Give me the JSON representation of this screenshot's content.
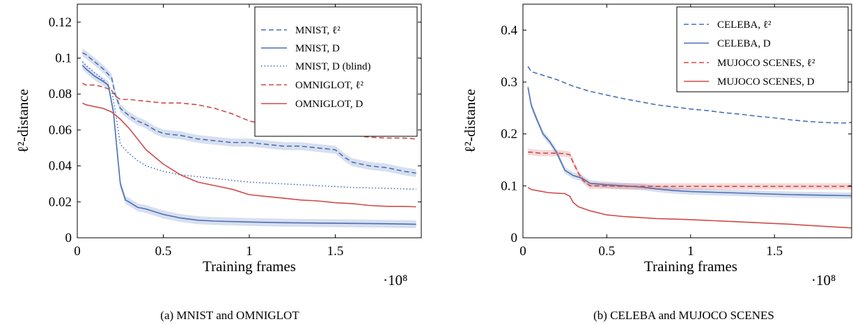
{
  "figure": {
    "subcaptions": [
      "(a) MNIST and OMNIGLOT",
      "(b) CELEBA and MUJOCO SCENES"
    ]
  },
  "chart_data": [
    {
      "type": "line",
      "title": "",
      "caption": "(a) MNIST and OMNIGLOT",
      "xlabel": "Training frames",
      "ylabel": "ℓ²-distance",
      "x_multiplier": "·10⁸",
      "xlim": [
        0,
        2.0
      ],
      "ylim": [
        0,
        0.13
      ],
      "xticks": [
        0,
        0.5,
        1,
        1.5
      ],
      "xtick_labels": [
        "0",
        "0.5",
        "1",
        "1.5"
      ],
      "yticks": [
        0,
        0.02,
        0.04,
        0.06,
        0.08,
        0.1,
        0.12
      ],
      "ytick_labels": [
        "0",
        "0.02",
        "0.04",
        "0.06",
        "0.08",
        "0.1",
        "0.12"
      ],
      "grid": false,
      "legend_position": "top-right",
      "series": [
        {
          "name": "MNIST, ℓ²",
          "color": "#4a6fb5",
          "dash": "dashed",
          "band": true,
          "x": [
            0.03,
            0.05,
            0.1,
            0.15,
            0.2,
            0.22,
            0.25,
            0.3,
            0.35,
            0.4,
            0.45,
            0.5,
            0.6,
            0.7,
            0.8,
            0.9,
            1.0,
            1.1,
            1.2,
            1.3,
            1.4,
            1.5,
            1.55,
            1.6,
            1.7,
            1.8,
            1.9,
            1.97
          ],
          "y": [
            0.103,
            0.102,
            0.098,
            0.094,
            0.089,
            0.08,
            0.072,
            0.068,
            0.065,
            0.063,
            0.06,
            0.058,
            0.057,
            0.055,
            0.054,
            0.053,
            0.053,
            0.052,
            0.051,
            0.051,
            0.05,
            0.049,
            0.045,
            0.042,
            0.04,
            0.039,
            0.037,
            0.036
          ]
        },
        {
          "name": "MNIST, D",
          "color": "#4a6fb5",
          "dash": "solid",
          "band": true,
          "x": [
            0.03,
            0.05,
            0.1,
            0.15,
            0.18,
            0.21,
            0.23,
            0.25,
            0.28,
            0.3,
            0.35,
            0.4,
            0.5,
            0.6,
            0.7,
            0.8,
            1.0,
            1.2,
            1.4,
            1.6,
            1.8,
            1.97
          ],
          "y": [
            0.096,
            0.094,
            0.09,
            0.087,
            0.085,
            0.07,
            0.05,
            0.03,
            0.021,
            0.02,
            0.017,
            0.016,
            0.013,
            0.011,
            0.0098,
            0.0093,
            0.0088,
            0.0084,
            0.0082,
            0.008,
            0.0078,
            0.0075
          ]
        },
        {
          "name": "MNIST, D (blind)",
          "color": "#4a6fb5",
          "dash": "dotted",
          "band": false,
          "x": [
            0.03,
            0.05,
            0.1,
            0.15,
            0.2,
            0.23,
            0.25,
            0.3,
            0.35,
            0.4,
            0.5,
            0.6,
            0.7,
            0.8,
            1.0,
            1.2,
            1.4,
            1.6,
            1.8,
            1.97
          ],
          "y": [
            0.098,
            0.096,
            0.092,
            0.088,
            0.082,
            0.065,
            0.052,
            0.047,
            0.043,
            0.04,
            0.037,
            0.035,
            0.034,
            0.033,
            0.031,
            0.03,
            0.029,
            0.028,
            0.0275,
            0.027
          ]
        },
        {
          "name": "OMNIGLOT, ℓ²",
          "color": "#d04a4a",
          "dash": "dashed",
          "band": false,
          "x": [
            0.03,
            0.05,
            0.1,
            0.15,
            0.2,
            0.22,
            0.25,
            0.3,
            0.4,
            0.5,
            0.6,
            0.7,
            0.75,
            0.8,
            0.9,
            1.0,
            1.1,
            1.2,
            1.3,
            1.4,
            1.5,
            1.6,
            1.7,
            1.8,
            1.9,
            1.97
          ],
          "y": [
            0.086,
            0.085,
            0.085,
            0.084,
            0.082,
            0.079,
            0.077,
            0.077,
            0.076,
            0.075,
            0.075,
            0.074,
            0.073,
            0.072,
            0.069,
            0.065,
            0.063,
            0.062,
            0.061,
            0.06,
            0.058,
            0.057,
            0.056,
            0.0555,
            0.0555,
            0.055
          ]
        },
        {
          "name": "OMNIGLOT, D",
          "color": "#d04a4a",
          "dash": "solid",
          "band": false,
          "x": [
            0.03,
            0.05,
            0.1,
            0.15,
            0.2,
            0.25,
            0.3,
            0.35,
            0.4,
            0.5,
            0.6,
            0.7,
            0.8,
            0.9,
            1.0,
            1.1,
            1.2,
            1.3,
            1.4,
            1.5,
            1.6,
            1.7,
            1.8,
            1.9,
            1.97
          ],
          "y": [
            0.075,
            0.074,
            0.073,
            0.072,
            0.07,
            0.066,
            0.061,
            0.055,
            0.049,
            0.041,
            0.035,
            0.031,
            0.029,
            0.027,
            0.024,
            0.023,
            0.022,
            0.021,
            0.0205,
            0.0195,
            0.019,
            0.018,
            0.0175,
            0.0175,
            0.0172
          ]
        }
      ]
    },
    {
      "type": "line",
      "title": "",
      "caption": "(b) CELEBA and MUJOCO SCENES",
      "xlabel": "Training frames",
      "ylabel": "ℓ²-distance",
      "x_multiplier": "·10⁸",
      "xlim": [
        0,
        1.96
      ],
      "ylim": [
        0,
        0.45
      ],
      "xticks": [
        0,
        0.5,
        1,
        1.5
      ],
      "xtick_labels": [
        "0",
        "0.5",
        "1",
        "1.5"
      ],
      "yticks": [
        0,
        0.1,
        0.2,
        0.3,
        0.4
      ],
      "ytick_labels": [
        "0",
        "0.1",
        "0.2",
        "0.3",
        "0.4"
      ],
      "grid": false,
      "legend_position": "top-right",
      "series": [
        {
          "name": "CELEBA, ℓ²",
          "color": "#4a6fb5",
          "dash": "dashed",
          "band": false,
          "x": [
            0.03,
            0.05,
            0.1,
            0.2,
            0.3,
            0.4,
            0.5,
            0.6,
            0.7,
            0.8,
            0.9,
            1.0,
            1.1,
            1.2,
            1.3,
            1.4,
            1.5,
            1.6,
            1.7,
            1.8,
            1.9,
            1.96
          ],
          "y": [
            0.33,
            0.32,
            0.315,
            0.305,
            0.292,
            0.282,
            0.275,
            0.268,
            0.262,
            0.256,
            0.252,
            0.248,
            0.245,
            0.241,
            0.238,
            0.234,
            0.231,
            0.227,
            0.224,
            0.222,
            0.221,
            0.222
          ]
        },
        {
          "name": "CELEBA, D",
          "color": "#4a6fb5",
          "dash": "solid",
          "band": true,
          "x": [
            0.03,
            0.05,
            0.08,
            0.12,
            0.16,
            0.2,
            0.25,
            0.3,
            0.35,
            0.4,
            0.5,
            0.6,
            0.7,
            0.8,
            0.9,
            1.0,
            1.2,
            1.4,
            1.6,
            1.8,
            1.96
          ],
          "y": [
            0.29,
            0.255,
            0.23,
            0.2,
            0.185,
            0.165,
            0.13,
            0.12,
            0.115,
            0.105,
            0.102,
            0.1,
            0.098,
            0.094,
            0.091,
            0.089,
            0.087,
            0.085,
            0.083,
            0.082,
            0.081
          ]
        },
        {
          "name": "MUJOCO SCENES, ℓ²",
          "color": "#d04a4a",
          "dash": "dashed",
          "band": true,
          "x": [
            0.03,
            0.05,
            0.1,
            0.15,
            0.2,
            0.25,
            0.28,
            0.3,
            0.33,
            0.36,
            0.4,
            0.5,
            0.6,
            0.8,
            1.0,
            1.2,
            1.4,
            1.6,
            1.8,
            1.96
          ],
          "y": [
            0.165,
            0.165,
            0.163,
            0.163,
            0.163,
            0.162,
            0.16,
            0.145,
            0.125,
            0.11,
            0.1,
            0.1,
            0.099,
            0.099,
            0.099,
            0.099,
            0.099,
            0.099,
            0.099,
            0.099
          ]
        },
        {
          "name": "MUJOCO SCENES, D",
          "color": "#d04a4a",
          "dash": "solid",
          "band": false,
          "x": [
            0.03,
            0.05,
            0.1,
            0.15,
            0.2,
            0.25,
            0.28,
            0.3,
            0.33,
            0.4,
            0.5,
            0.6,
            0.7,
            0.8,
            0.9,
            1.0,
            1.2,
            1.4,
            1.6,
            1.8,
            1.96
          ],
          "y": [
            0.097,
            0.093,
            0.09,
            0.087,
            0.086,
            0.085,
            0.08,
            0.068,
            0.06,
            0.052,
            0.044,
            0.041,
            0.039,
            0.037,
            0.036,
            0.035,
            0.032,
            0.029,
            0.026,
            0.022,
            0.019
          ]
        }
      ]
    }
  ]
}
